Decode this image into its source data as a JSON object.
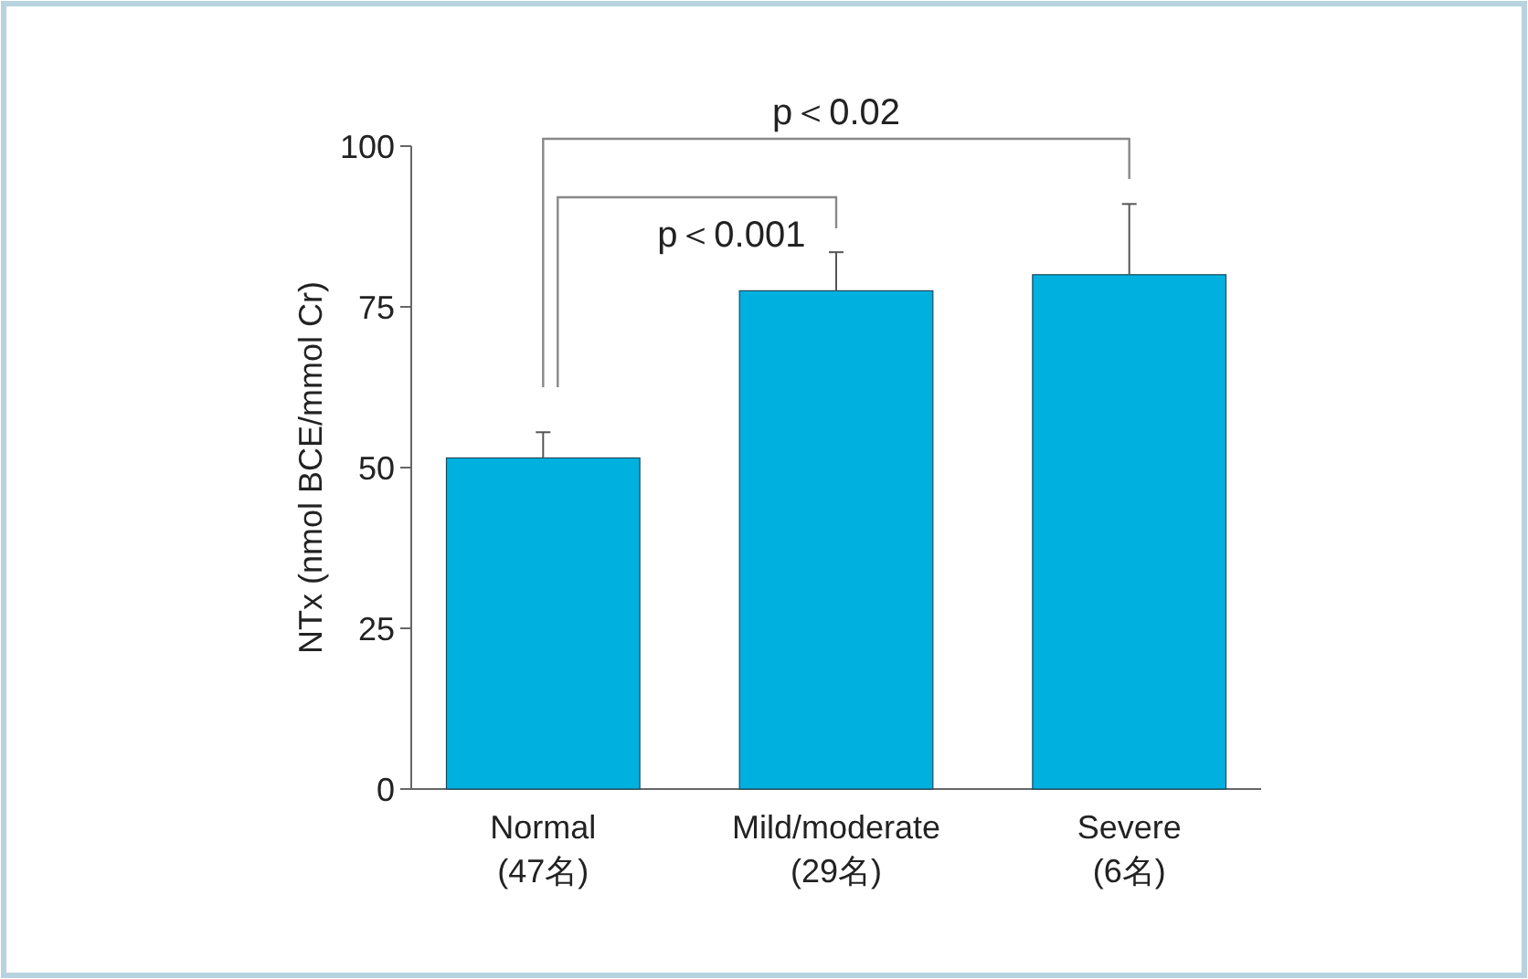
{
  "chart_data": {
    "type": "bar",
    "ylabel": "NTx (nmol BCE/mmol Cr)",
    "categories": [
      "Normal\n(47名)",
      "Mild/moderate\n(29名)",
      "Severe\n(6名)"
    ],
    "values": [
      51.5,
      77.5,
      80
    ],
    "color": "#00b0de",
    "errors": [
      [
        51.5,
        55.5
      ],
      [
        77.5,
        83.5
      ],
      [
        80,
        91
      ]
    ],
    "ylim": [
      0,
      100
    ],
    "yticks": [
      0,
      25,
      50,
      75,
      100
    ],
    "annotations": [
      "p＜0.001",
      "p＜0.02"
    ]
  }
}
